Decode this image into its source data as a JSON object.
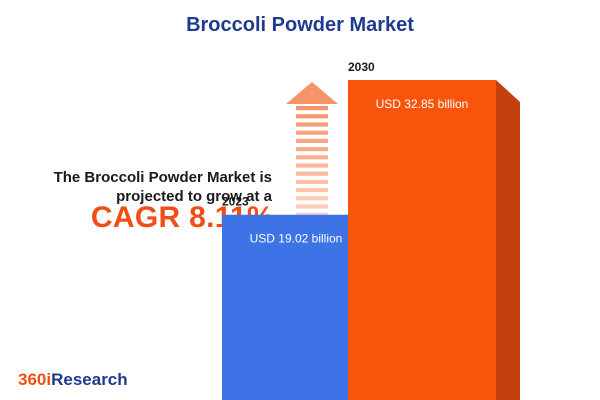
{
  "title": "Broccoli Powder Market",
  "tagline": "The Broccoli Powder Market is projected to grow at a",
  "cagr": "CAGR 8.11%",
  "brand": {
    "prefix": "360i",
    "suffix": "Research"
  },
  "colors": {
    "title": "#1f3a8f",
    "accent": "#f04e14",
    "bar_2023": "#3d73e6",
    "bar_2023_side": "#1d3fa0",
    "bar_2030": "#f7550c",
    "bar_2030_side": "#c2410c",
    "arrow": "#f7946a"
  },
  "chart_data": {
    "type": "bar",
    "title": "Broccoli Powder Market",
    "categories": [
      "2023",
      "2030"
    ],
    "values": [
      19.02,
      32.85
    ],
    "value_labels": [
      "USD 19.02 billion",
      "USD 32.85 billion"
    ],
    "unit": "USD billion",
    "cagr": "8.11%"
  }
}
